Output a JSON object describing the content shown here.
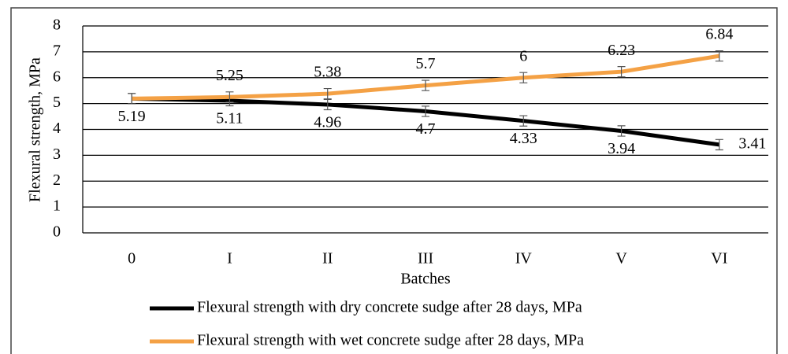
{
  "chart_data": {
    "type": "line",
    "x_label": "Batches",
    "y_label": "Flexural strength, MPa",
    "categories": [
      "0",
      "I",
      "II",
      "III",
      "IV",
      "V",
      "VI"
    ],
    "series": [
      {
        "name": "Flexural strength with dry concrete sudge after 28 days, MPa",
        "color": "#000000",
        "values": [
          5.19,
          5.11,
          4.96,
          4.7,
          4.33,
          3.94,
          3.41
        ],
        "errors": [
          0.2,
          0.2,
          0.2,
          0.2,
          0.2,
          0.2,
          0.2
        ],
        "value_labels": [
          "5.19",
          "5.11",
          "4.96",
          "4.7",
          "4.33",
          "3.94",
          "3.41"
        ]
      },
      {
        "name": "Flexural strength with wet concrete sudge after 28 days, MPa",
        "color": "#f4a145",
        "values": [
          5.19,
          5.25,
          5.38,
          5.7,
          6,
          6.23,
          6.84
        ],
        "errors": [
          0.2,
          0.2,
          0.2,
          0.2,
          0.2,
          0.2,
          0.2
        ],
        "value_labels": [
          null,
          "5.25",
          "5.38",
          "5.7",
          "6",
          "6.23",
          "6.84"
        ]
      }
    ],
    "ylim": [
      0,
      8
    ],
    "yticks": [
      0,
      1,
      2,
      3,
      4,
      5,
      6,
      7,
      8
    ],
    "grid": true
  }
}
